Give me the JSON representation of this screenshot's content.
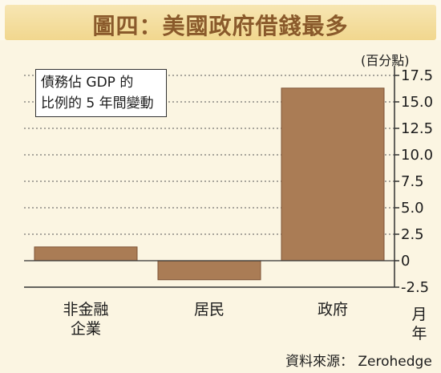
{
  "header": {
    "title": "圖四：美國政府借錢最多"
  },
  "note": {
    "line1": "債務佔 GDP 的",
    "line2": "比例的 5 年間變動"
  },
  "unit": "(百分點)",
  "month_label": {
    "top": "月",
    "bottom": "年"
  },
  "source": "資料來源： Zerohedge",
  "colors": {
    "bar": "#aa7c55",
    "bar_stroke": "#7e5436",
    "title_text": "#8a5a2b",
    "title_bg": "#f3dc98"
  },
  "chart_data": {
    "type": "bar",
    "categories": [
      "非金融\n企業",
      "居民",
      "政府"
    ],
    "values": [
      1.3,
      -1.8,
      16.3
    ],
    "ylim": [
      -2.5,
      17.5
    ],
    "yticks": [
      -2.5,
      0,
      2.5,
      5.0,
      7.5,
      10.0,
      12.5,
      15.0,
      17.5
    ],
    "ytick_labels": [
      "-2.5",
      "0",
      "2.5",
      "5.0",
      "7.5",
      "10.0",
      "12.5",
      "15.0",
      "17.5"
    ],
    "grid": true,
    "axis_side": "right"
  }
}
